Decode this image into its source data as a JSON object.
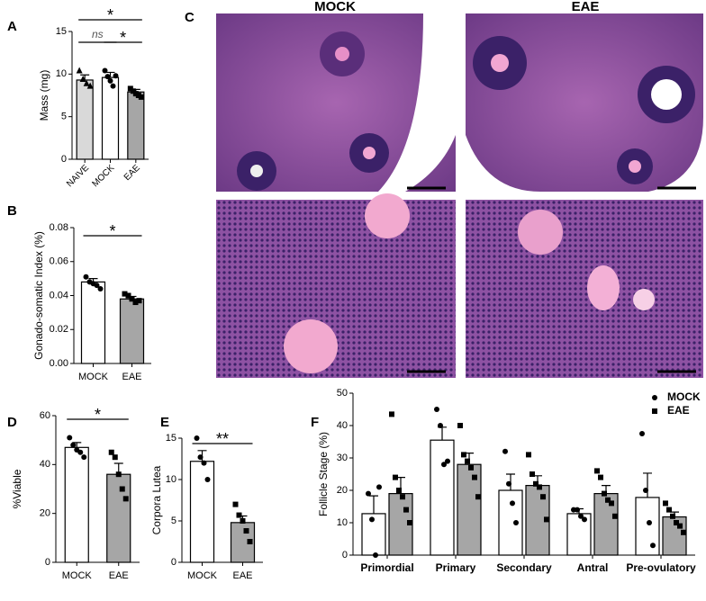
{
  "figure": {
    "panel_labels": [
      "A",
      "B",
      "C",
      "D",
      "E",
      "F"
    ],
    "image_titles": [
      "MOCK",
      "EAE"
    ]
  },
  "chart_data": [
    {
      "type": "bar",
      "ylabel": "Mass (mg)",
      "categories": [
        "NAIVE",
        "MOCK",
        "EAE"
      ],
      "values": [
        9.3,
        9.6,
        7.9
      ],
      "errors": [
        0.6,
        0.6,
        0.3
      ],
      "colors": [
        "#d9d9d9",
        "#ffffff",
        "#a6a6a6"
      ],
      "markers": [
        "triangle",
        "circle",
        "square"
      ],
      "points": [
        [
          10.4,
          9.4,
          8.9,
          8.6
        ],
        [
          10.4,
          9.7,
          9.2,
          8.6,
          9.8
        ],
        [
          8.3,
          8.0,
          7.7,
          7.5,
          7.3
        ]
      ],
      "ylim": [
        0,
        15
      ],
      "yticks": [
        0,
        5,
        10,
        15
      ],
      "annotations": [
        "*",
        "ns",
        "*"
      ]
    },
    {
      "type": "bar",
      "ylabel": "Gonado-somatic Index (%)",
      "categories": [
        "MOCK",
        "EAE"
      ],
      "values": [
        0.048,
        0.038
      ],
      "errors": [
        0.002,
        0.0015
      ],
      "colors": [
        "#ffffff",
        "#a6a6a6"
      ],
      "markers": [
        "circle",
        "square"
      ],
      "points": [
        [
          0.051,
          0.048,
          0.047,
          0.046,
          0.044
        ],
        [
          0.041,
          0.04,
          0.038,
          0.036,
          0.037
        ]
      ],
      "ylim": [
        0,
        0.08
      ],
      "yticks": [
        {
          "value": 0,
          "label": "0.00"
        },
        0.02,
        0.04,
        0.06,
        0.08
      ],
      "annotations": [
        "*"
      ]
    },
    {
      "type": "bar",
      "ylabel": "%Viable",
      "categories": [
        "MOCK",
        "EAE"
      ],
      "values": [
        47,
        36
      ],
      "errors": [
        2,
        4.5
      ],
      "colors": [
        "#ffffff",
        "#a6a6a6"
      ],
      "markers": [
        "circle",
        "square"
      ],
      "points": [
        [
          51,
          48,
          46,
          45,
          43
        ],
        [
          45,
          43,
          36,
          30,
          26
        ]
      ],
      "ylim": [
        0,
        60
      ],
      "yticks": [
        0,
        20,
        40,
        60
      ],
      "annotations": [
        "*"
      ]
    },
    {
      "type": "bar",
      "ylabel": "Corpora Lutea",
      "categories": [
        "MOCK",
        "EAE"
      ],
      "values": [
        12.2,
        4.8
      ],
      "errors": [
        1.3,
        0.8
      ],
      "colors": [
        "#ffffff",
        "#a6a6a6"
      ],
      "markers": [
        "circle",
        "square"
      ],
      "points": [
        [
          15,
          12.7,
          12,
          10
        ],
        [
          7,
          5.7,
          5,
          3.8,
          2.5
        ]
      ],
      "ylim": [
        0,
        15
      ],
      "yticks": [
        0,
        5,
        10,
        15
      ],
      "annotations": [
        "**"
      ]
    },
    {
      "type": "grouped_bar",
      "ylabel": "Follicle Stage (%)",
      "categories": [
        "Primordial",
        "Primary",
        "Secondary",
        "Antral",
        "Pre-ovulatory"
      ],
      "series": [
        {
          "name": "MOCK",
          "color": "#ffffff",
          "marker": "circle",
          "values": [
            12.8,
            35.5,
            20,
            12.8,
            17.8
          ],
          "errors": [
            5.5,
            4,
            5,
            1.5,
            7.5
          ],
          "points": [
            [
              19,
              11,
              0,
              21
            ],
            [
              45,
              40,
              28,
              29
            ],
            [
              32,
              22,
              16,
              10
            ],
            [
              14,
              14,
              12,
              11
            ],
            [
              37.5,
              20,
              10,
              3
            ]
          ]
        },
        {
          "name": "EAE",
          "color": "#a6a6a6",
          "marker": "square",
          "values": [
            19,
            28,
            21.5,
            19,
            11.8
          ],
          "errors": [
            5,
            3.5,
            3,
            2.5,
            1.5
          ],
          "points": [
            [
              43.5,
              24,
              20,
              18,
              14,
              10
            ],
            [
              40,
              31,
              29,
              27,
              24,
              18
            ],
            [
              31,
              25,
              22,
              21,
              18,
              11
            ],
            [
              26,
              24,
              19,
              17,
              16,
              12
            ],
            [
              16,
              14,
              12,
              10,
              9,
              7
            ]
          ]
        }
      ],
      "ylim": [
        0,
        50
      ],
      "yticks": [
        0,
        10,
        20,
        30,
        40,
        50
      ],
      "legend": "upper right"
    }
  ]
}
